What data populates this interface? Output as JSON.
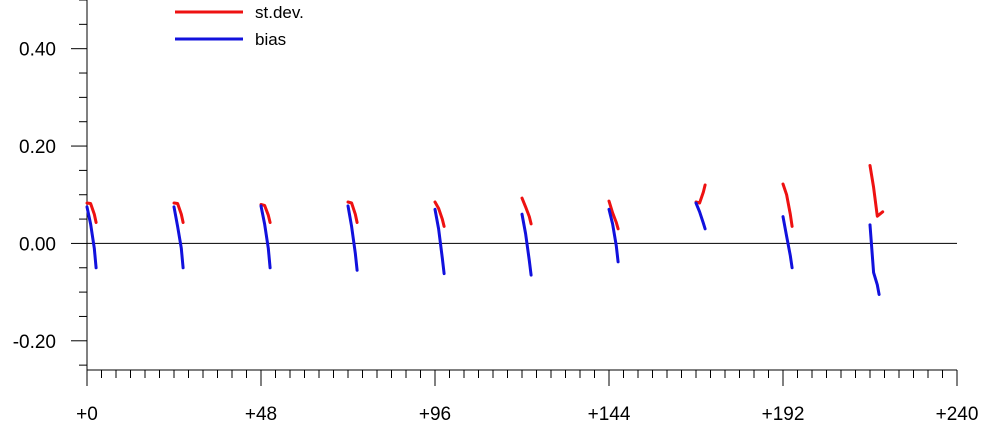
{
  "chart_data": {
    "type": "line",
    "xlabel": "",
    "ylabel": "",
    "xlim": [
      0,
      240
    ],
    "ylim": [
      -0.26,
      0.5
    ],
    "x_ticks": [
      0,
      48,
      96,
      144,
      192,
      240
    ],
    "x_tick_labels": [
      "+0",
      "+48",
      "+96",
      "+144",
      "+192",
      "+240"
    ],
    "x_minor_step": 4,
    "y_ticks": [
      -0.2,
      0.0,
      0.2,
      0.4
    ],
    "y_tick_labels": [
      "-0.20",
      "0.00",
      "0.20",
      "0.40"
    ],
    "y_minor_step": 0.05,
    "zero_line": true,
    "grid": false,
    "legend_position": "top-left",
    "legend": [
      {
        "label": "st.dev.",
        "color": "#ee1111"
      },
      {
        "label": "bias",
        "color": "#1111dd"
      }
    ],
    "series": [
      {
        "name": "st.dev.",
        "color": "#ee1111",
        "segments": [
          [
            [
              0,
              0.083
            ],
            [
              1,
              0.082
            ],
            [
              2,
              0.06
            ],
            [
              2.5,
              0.043
            ]
          ],
          [
            [
              24,
              0.083
            ],
            [
              25,
              0.082
            ],
            [
              26,
              0.06
            ],
            [
              26.5,
              0.043
            ]
          ],
          [
            [
              48,
              0.08
            ],
            [
              49,
              0.078
            ],
            [
              50,
              0.058
            ],
            [
              50.5,
              0.043
            ]
          ],
          [
            [
              72,
              0.085
            ],
            [
              73,
              0.083
            ],
            [
              74,
              0.06
            ],
            [
              74.5,
              0.043
            ]
          ],
          [
            [
              96,
              0.085
            ],
            [
              97,
              0.072
            ],
            [
              98,
              0.05
            ],
            [
              98.5,
              0.035
            ]
          ],
          [
            [
              120,
              0.093
            ],
            [
              121,
              0.075
            ],
            [
              122,
              0.055
            ],
            [
              122.5,
              0.04
            ]
          ],
          [
            [
              144,
              0.087
            ],
            [
              145,
              0.063
            ],
            [
              146,
              0.043
            ],
            [
              146.5,
              0.03
            ]
          ],
          [
            [
              168,
              0.085
            ],
            [
              169,
              0.083
            ],
            [
              170,
              0.105
            ],
            [
              170.5,
              0.12
            ]
          ],
          [
            [
              192,
              0.122
            ],
            [
              193,
              0.1
            ],
            [
              194,
              0.06
            ],
            [
              194.5,
              0.035
            ]
          ],
          [
            [
              216,
              0.16
            ],
            [
              217,
              0.115
            ],
            [
              218,
              0.056
            ],
            [
              219.5,
              0.065
            ]
          ]
        ]
      },
      {
        "name": "bias",
        "color": "#1111dd",
        "segments": [
          [
            [
              0,
              0.075
            ],
            [
              1,
              0.04
            ],
            [
              2,
              -0.01
            ],
            [
              2.5,
              -0.05
            ]
          ],
          [
            [
              24,
              0.075
            ],
            [
              25,
              0.035
            ],
            [
              26,
              -0.01
            ],
            [
              26.5,
              -0.05
            ]
          ],
          [
            [
              48,
              0.077
            ],
            [
              49,
              0.04
            ],
            [
              50,
              -0.01
            ],
            [
              50.5,
              -0.05
            ]
          ],
          [
            [
              72,
              0.077
            ],
            [
              73,
              0.035
            ],
            [
              74,
              -0.02
            ],
            [
              74.5,
              -0.055
            ]
          ],
          [
            [
              96,
              0.07
            ],
            [
              97,
              0.03
            ],
            [
              98,
              -0.03
            ],
            [
              98.5,
              -0.062
            ]
          ],
          [
            [
              120,
              0.06
            ],
            [
              121,
              0.02
            ],
            [
              122,
              -0.035
            ],
            [
              122.5,
              -0.065
            ]
          ],
          [
            [
              144,
              0.07
            ],
            [
              145,
              0.04
            ],
            [
              146,
              -0.005
            ],
            [
              146.5,
              -0.038
            ]
          ],
          [
            [
              168,
              0.083
            ],
            [
              169,
              0.065
            ],
            [
              170,
              0.042
            ],
            [
              170.5,
              0.03
            ]
          ],
          [
            [
              192,
              0.055
            ],
            [
              193,
              0.015
            ],
            [
              194,
              -0.025
            ],
            [
              194.5,
              -0.05
            ]
          ],
          [
            [
              216,
              0.038
            ],
            [
              217,
              -0.06
            ],
            [
              218,
              -0.085
            ],
            [
              218.5,
              -0.105
            ]
          ]
        ]
      }
    ]
  }
}
